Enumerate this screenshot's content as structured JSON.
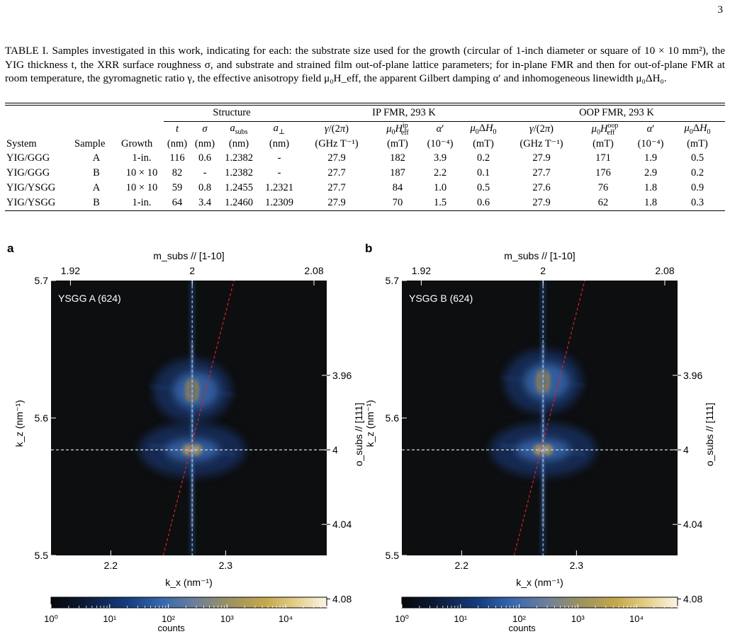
{
  "page": {
    "number": "3"
  },
  "caption": {
    "label": "TABLE I.",
    "text": "Samples investigated in this work, indicating for each: the substrate size used for the growth (circular of 1-inch diameter or square of 10 × 10 mm²), the YIG thickness t, the XRR surface roughness σ, and substrate and strained film out-of-plane lattice parameters; for in-plane FMR and then for out-of-plane FMR at room temperature, the gyromagnetic ratio γ, the effective anisotropy field μ₀H_eff, the apparent Gilbert damping α′ and inhomogeneous linewidth μ₀ΔH₀."
  },
  "table": {
    "group_headers": [
      "Structure",
      "IP FMR, 293 K",
      "OOP FMR, 293 K"
    ],
    "symbols": [
      "t",
      "σ",
      "a_subs",
      "a⊥",
      "γ/(2π)",
      "μ₀H_eff^ip",
      "α′",
      "μ₀ΔH₀",
      "γ/(2π)",
      "μ₀H_eff^oop",
      "α′",
      "μ₀ΔH₀"
    ],
    "columns": [
      "System",
      "Sample",
      "Growth",
      "(nm)",
      "(nm)",
      "(nm)",
      "(nm)",
      "(GHz T⁻¹)",
      "(mT)",
      "(10⁻⁴)",
      "(mT)",
      "(GHz T⁻¹)",
      "(mT)",
      "(10⁻⁴)",
      "(mT)"
    ],
    "rows": [
      [
        "YIG/GGG",
        "A",
        "1-in.",
        "116",
        "0.6",
        "1.2382",
        "-",
        "27.9",
        "182",
        "3.9",
        "0.2",
        "27.9",
        "171",
        "1.9",
        "0.5"
      ],
      [
        "YIG/GGG",
        "B",
        "10 × 10",
        "82",
        "-",
        "1.2382",
        "-",
        "27.7",
        "187",
        "2.2",
        "0.1",
        "27.7",
        "176",
        "2.9",
        "0.2"
      ],
      [
        "YIG/YSGG",
        "A",
        "10 × 10",
        "59",
        "0.8",
        "1.2455",
        "1.2321",
        "27.7",
        "84",
        "1.0",
        "0.5",
        "27.6",
        "76",
        "1.8",
        "0.9"
      ],
      [
        "YIG/YSGG",
        "B",
        "1-in.",
        "64",
        "3.4",
        "1.2460",
        "1.2309",
        "27.9",
        "70",
        "1.5",
        "0.6",
        "27.9",
        "62",
        "1.8",
        "0.3"
      ]
    ]
  },
  "colors": {
    "map_background": "#0d0e10",
    "vertical_guide": "#9fc3e8",
    "horizontal_guide": "#d8d8d8",
    "diagonal_guide": "#e02020"
  },
  "chart_data": [
    {
      "type": "heatmap",
      "panel_label": "a",
      "sample_label": "YSGG A (624)",
      "xlabel": "k_x (nm⁻¹)",
      "ylabel": "k_z (nm⁻¹)",
      "top_axis_label": "m_subs // [1-10]",
      "right_axis_label": "o_subs // [111]",
      "colorbar_label": "counts",
      "xlim": [
        2.148,
        2.388
      ],
      "ylim": [
        5.5,
        5.7
      ],
      "x_ticks": [
        2.2,
        2.3
      ],
      "y_ticks": [
        5.5,
        5.6,
        5.7
      ],
      "top_ticks": [
        1.92,
        2.0,
        2.08
      ],
      "right_ticks": [
        3.96,
        4.0,
        4.04,
        4.08
      ],
      "colorbar_ticks": [
        "10⁰",
        "10¹",
        "10²",
        "10³",
        "10⁴"
      ],
      "guide_x": 2.2709,
      "guide_y": 5.5768,
      "diagonal": [
        [
          2.2457,
          5.5
        ],
        [
          2.3072,
          5.7
        ]
      ],
      "peaks": [
        {
          "x": 2.2709,
          "y": 5.5768,
          "intensity": 4.3
        },
        {
          "x": 2.2709,
          "y": 5.62,
          "intensity": 3.0
        }
      ]
    },
    {
      "type": "heatmap",
      "panel_label": "b",
      "sample_label": "YSGG B (624)",
      "xlabel": "k_x (nm⁻¹)",
      "ylabel": "k_z (nm⁻¹)",
      "top_axis_label": "m_subs // [1-10]",
      "right_axis_label": "o_subs // [111]",
      "colorbar_label": "counts",
      "xlim": [
        2.148,
        2.388
      ],
      "ylim": [
        5.5,
        5.7
      ],
      "x_ticks": [
        2.2,
        2.3
      ],
      "y_ticks": [
        5.5,
        5.6,
        5.7
      ],
      "top_ticks": [
        1.92,
        2.0,
        2.08
      ],
      "right_ticks": [
        3.96,
        4.0,
        4.04,
        4.08
      ],
      "colorbar_ticks": [
        "10⁰",
        "10¹",
        "10²",
        "10³",
        "10⁴"
      ],
      "guide_x": 2.2709,
      "guide_y": 5.5768,
      "diagonal": [
        [
          2.2457,
          5.5
        ],
        [
          2.3072,
          5.7
        ]
      ],
      "peaks": [
        {
          "x": 2.2709,
          "y": 5.5768,
          "intensity": 4.4
        },
        {
          "x": 2.2709,
          "y": 5.6265,
          "intensity": 3.2
        }
      ]
    }
  ]
}
